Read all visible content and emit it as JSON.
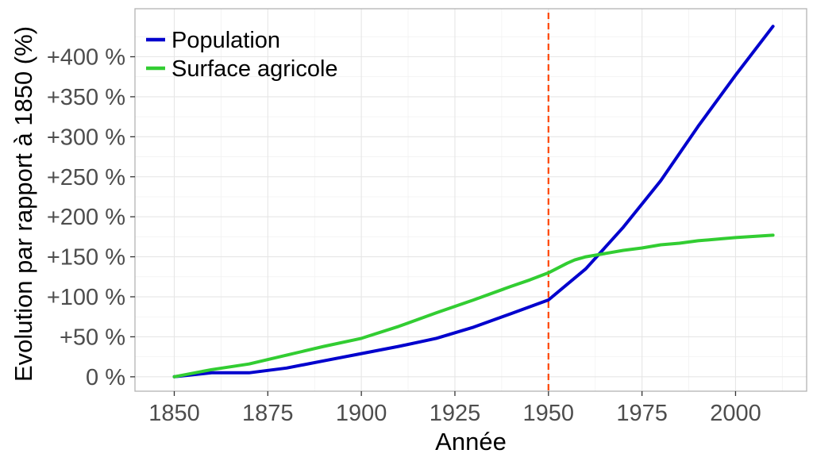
{
  "chart_data": {
    "type": "line",
    "xlabel": "Année",
    "ylabel": "Evolution par rapport à 1850 (%)",
    "xlim": [
      1839.5,
      2019
    ],
    "ylim": [
      -18,
      460
    ],
    "x_ticks": [
      1850,
      1875,
      1900,
      1925,
      1950,
      1975,
      2000
    ],
    "x_tick_labels": [
      "1850",
      "1875",
      "1900",
      "1925",
      "1950",
      "1975",
      "2000"
    ],
    "y_ticks": [
      0,
      50,
      100,
      150,
      200,
      250,
      300,
      350,
      400
    ],
    "y_tick_labels": [
      "0 %",
      "+50 %",
      "+100 %",
      "+150 %",
      "+200 %",
      "+250 %",
      "+300 %",
      "+350 %",
      "+400 %"
    ],
    "grid": true,
    "legend_position": "top-left",
    "reference_line": {
      "x": 1950,
      "color": "#ff4500",
      "style": "dashed"
    },
    "series": [
      {
        "name": "Population",
        "color": "#0000cd",
        "x": [
          1850,
          1860,
          1870,
          1880,
          1890,
          1900,
          1910,
          1920,
          1930,
          1940,
          1950,
          1960,
          1970,
          1980,
          1990,
          2000,
          2010
        ],
        "y": [
          0,
          5,
          5,
          11,
          20,
          29,
          38,
          48,
          62,
          79,
          96,
          135,
          187,
          245,
          313,
          377,
          438
        ]
      },
      {
        "name": "Surface agricole",
        "color": "#32cd32",
        "x": [
          1850,
          1860,
          1870,
          1880,
          1890,
          1900,
          1910,
          1920,
          1930,
          1940,
          1945,
          1950,
          1955,
          1957,
          1960,
          1965,
          1970,
          1975,
          1980,
          1985,
          1990,
          2000,
          2010
        ],
        "y": [
          0,
          9,
          16,
          27,
          38,
          48,
          63,
          80,
          96,
          113,
          121,
          130,
          142,
          146,
          150,
          154,
          158,
          161,
          165,
          167,
          170,
          174,
          177
        ]
      }
    ]
  }
}
